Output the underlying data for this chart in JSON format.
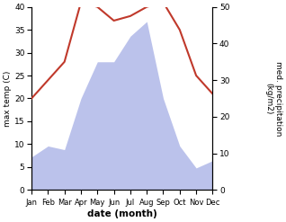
{
  "months": [
    "Jan",
    "Feb",
    "Mar",
    "Apr",
    "May",
    "Jun",
    "Jul",
    "Aug",
    "Sep",
    "Oct",
    "Nov",
    "Dec"
  ],
  "x": [
    0,
    1,
    2,
    3,
    4,
    5,
    6,
    7,
    8,
    9,
    10,
    11
  ],
  "temperature": [
    20,
    24,
    28,
    41,
    40,
    37,
    38,
    40,
    41,
    35,
    25,
    21
  ],
  "precipitation": [
    9,
    12,
    11,
    25,
    35,
    35,
    42,
    46,
    25,
    12,
    6,
    8
  ],
  "temp_color": "#c0392b",
  "precip_color": "#b0b8e8",
  "title": "",
  "xlabel": "date (month)",
  "ylabel_left": "max temp (C)",
  "ylabel_right": "med. precipitation\n(kg/m2)",
  "ylim_left": [
    0,
    40
  ],
  "ylim_right": [
    0,
    50
  ],
  "background_color": "#ffffff"
}
